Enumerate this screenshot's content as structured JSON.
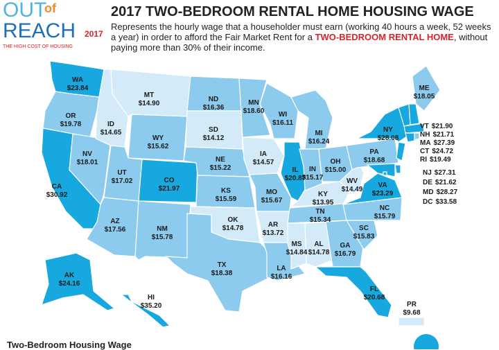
{
  "header": {
    "logo_out": "OUT",
    "logo_of": "of",
    "logo_reach": "REACH",
    "logo_year": "2017",
    "logo_tagline": "THE HIGH COST OF HOUSING",
    "title": "2017 TWO-BEDROOM RENTAL HOME HOUSING WAGE",
    "description": [
      "Represents the hourly wage that a householder must earn (working 40 hours a week, 52 weeks a year) in order to afford the Fair Market Rent for a ",
      "TWO-BEDROOM RENTAL HOME",
      ", without paying more than 30% of their income."
    ]
  },
  "colors": {
    "low": "#d3eaf8",
    "mid": "#8ccbee",
    "high": "#17a8e0"
  },
  "states": [
    {
      "abbr": "WA",
      "wage": "$23.84",
      "tier": "high"
    },
    {
      "abbr": "OR",
      "wage": "$19.78",
      "tier": "mid"
    },
    {
      "abbr": "CA",
      "wage": "$30.92",
      "tier": "high"
    },
    {
      "abbr": "NV",
      "wage": "$18.01",
      "tier": "mid"
    },
    {
      "abbr": "ID",
      "wage": "$14.65",
      "tier": "low"
    },
    {
      "abbr": "MT",
      "wage": "$14.90",
      "tier": "low"
    },
    {
      "abbr": "WY",
      "wage": "$15.62",
      "tier": "mid"
    },
    {
      "abbr": "UT",
      "wage": "$17.02",
      "tier": "mid"
    },
    {
      "abbr": "CO",
      "wage": "$21.97",
      "tier": "high"
    },
    {
      "abbr": "AZ",
      "wage": "$17.56",
      "tier": "mid"
    },
    {
      "abbr": "NM",
      "wage": "$15.78",
      "tier": "mid"
    },
    {
      "abbr": "ND",
      "wage": "$16.36",
      "tier": "mid"
    },
    {
      "abbr": "SD",
      "wage": "$14.12",
      "tier": "low"
    },
    {
      "abbr": "NE",
      "wage": "$15.22",
      "tier": "mid"
    },
    {
      "abbr": "KS",
      "wage": "$15.59",
      "tier": "mid"
    },
    {
      "abbr": "OK",
      "wage": "$14.78",
      "tier": "low"
    },
    {
      "abbr": "TX",
      "wage": "$18.38",
      "tier": "mid"
    },
    {
      "abbr": "MN",
      "wage": "$18.60",
      "tier": "mid"
    },
    {
      "abbr": "IA",
      "wage": "$14.57",
      "tier": "low"
    },
    {
      "abbr": "MO",
      "wage": "$15.67",
      "tier": "mid"
    },
    {
      "abbr": "AR",
      "wage": "$13.72",
      "tier": "low"
    },
    {
      "abbr": "LA",
      "wage": "$16.16",
      "tier": "mid"
    },
    {
      "abbr": "WI",
      "wage": "$16.11",
      "tier": "mid"
    },
    {
      "abbr": "IL",
      "wage": "$20.87",
      "tier": "high"
    },
    {
      "abbr": "MI",
      "wage": "$16.24",
      "tier": "mid"
    },
    {
      "abbr": "IN",
      "wage": "$15.17",
      "tier": "mid"
    },
    {
      "abbr": "OH",
      "wage": "$15.00",
      "tier": "mid"
    },
    {
      "abbr": "KY",
      "wage": "$13.95",
      "tier": "low"
    },
    {
      "abbr": "TN",
      "wage": "$15.34",
      "tier": "mid"
    },
    {
      "abbr": "MS",
      "wage": "$14.84",
      "tier": "low"
    },
    {
      "abbr": "AL",
      "wage": "$14.78",
      "tier": "low"
    },
    {
      "abbr": "GA",
      "wage": "$16.79",
      "tier": "mid"
    },
    {
      "abbr": "FL",
      "wage": "$20.68",
      "tier": "high"
    },
    {
      "abbr": "SC",
      "wage": "$15.83",
      "tier": "mid"
    },
    {
      "abbr": "NC",
      "wage": "$15.79",
      "tier": "mid"
    },
    {
      "abbr": "VA",
      "wage": "$23.29",
      "tier": "high"
    },
    {
      "abbr": "WV",
      "wage": "$14.49",
      "tier": "low"
    },
    {
      "abbr": "PA",
      "wage": "$18.68",
      "tier": "mid"
    },
    {
      "abbr": "NY",
      "wage": "$28.08",
      "tier": "high"
    },
    {
      "abbr": "ME",
      "wage": "$18.05",
      "tier": "mid"
    },
    {
      "abbr": "VT",
      "wage": "$21.90",
      "tier": "high"
    },
    {
      "abbr": "NH",
      "wage": "$21.71",
      "tier": "high"
    },
    {
      "abbr": "MA",
      "wage": "$27.39",
      "tier": "high"
    },
    {
      "abbr": "CT",
      "wage": "$24.72",
      "tier": "high"
    },
    {
      "abbr": "RI",
      "wage": "$19.49",
      "tier": "mid"
    },
    {
      "abbr": "NJ",
      "wage": "$27.31",
      "tier": "high"
    },
    {
      "abbr": "DE",
      "wage": "$21.62",
      "tier": "high"
    },
    {
      "abbr": "MD",
      "wage": "$28.27",
      "tier": "high"
    },
    {
      "abbr": "DC",
      "wage": "$33.58",
      "tier": "high"
    },
    {
      "abbr": "AK",
      "wage": "$24.16",
      "tier": "high"
    },
    {
      "abbr": "HI",
      "wage": "$35.20",
      "tier": "high"
    },
    {
      "abbr": "PR",
      "wage": "$9.68",
      "tier": "low"
    }
  ],
  "legend": {
    "title": "Two-Bedroom Housing Wage"
  }
}
